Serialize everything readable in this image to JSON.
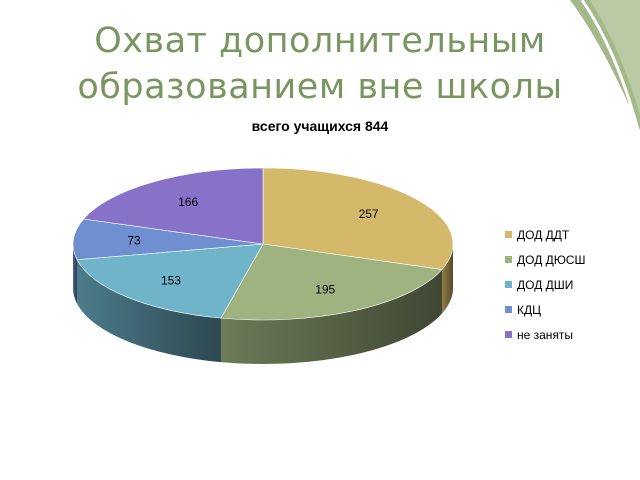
{
  "slide": {
    "title_line1": "Охват дополнительным",
    "title_line2": "образованием вне школы"
  },
  "chart_data": {
    "type": "pie",
    "title": "всего учащихся 844",
    "categories": [
      "ДОД ДДТ",
      "ДОД ДЮСШ",
      "ДОД ДШИ",
      "КДЦ",
      "не заняты"
    ],
    "values": [
      257,
      195,
      153,
      73,
      166
    ],
    "data_labels": [
      "257",
      "195",
      "153",
      "73",
      "166"
    ],
    "colors": [
      "#d4b96a",
      "#9fb380",
      "#6fb4c9",
      "#6f8fd0",
      "#8872c9"
    ],
    "legend_position": "right",
    "style": "3d"
  },
  "colors": {
    "title": "#7a9660",
    "corner_accent": "#a3b98a"
  }
}
